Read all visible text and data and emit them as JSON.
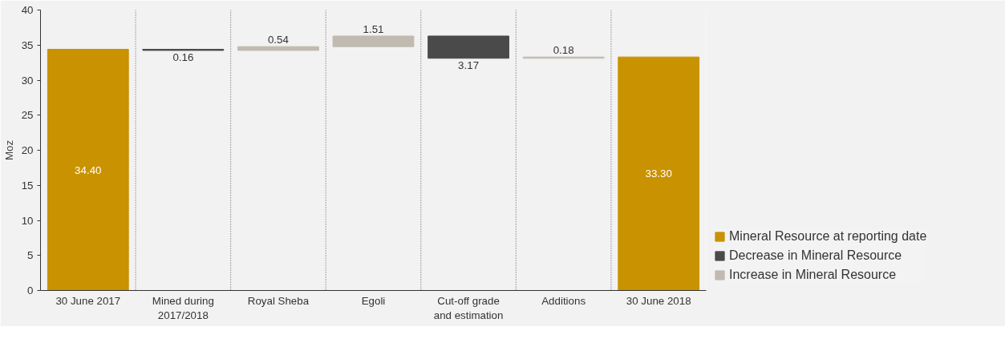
{
  "chart_data": {
    "type": "bar",
    "ylabel": "Moz",
    "categories": [
      "30 June 2017",
      "Mined during 2017/2018",
      "Royal Sheba",
      "Egoli",
      "Cut-off grade and estimation",
      "Additions",
      "30 June 2018"
    ],
    "series": [
      {
        "name": "Mineral Resource at reporting date",
        "color": "#c89200",
        "values": [
          34.4,
          null,
          null,
          null,
          null,
          null,
          33.3
        ],
        "base": [
          0,
          null,
          null,
          null,
          null,
          null,
          0
        ],
        "value_labels": [
          "34.40",
          null,
          null,
          null,
          null,
          null,
          "33.30"
        ]
      },
      {
        "name": "Decrease in Mineral Resource",
        "color": "#4a4a4a",
        "values": [
          null,
          0.16,
          null,
          null,
          3.17,
          null,
          null
        ],
        "base": [
          null,
          34.24,
          null,
          null,
          33.12,
          null,
          null
        ],
        "value_labels": [
          null,
          "0.16",
          null,
          null,
          "3.17",
          null,
          null
        ]
      },
      {
        "name": "Increase in Mineral Resource",
        "color": "#c0bab0",
        "values": [
          null,
          null,
          0.54,
          1.51,
          null,
          0.18,
          null
        ],
        "base": [
          null,
          null,
          34.24,
          34.78,
          null,
          33.12,
          null
        ],
        "value_labels": [
          null,
          null,
          "0.54",
          "1.51",
          null,
          "0.18",
          null
        ]
      }
    ],
    "ylim": [
      0,
      40
    ],
    "yticks": [
      0,
      5,
      10,
      15,
      20,
      25,
      30,
      35,
      40
    ],
    "grid": "x",
    "legend": "bottom right"
  }
}
